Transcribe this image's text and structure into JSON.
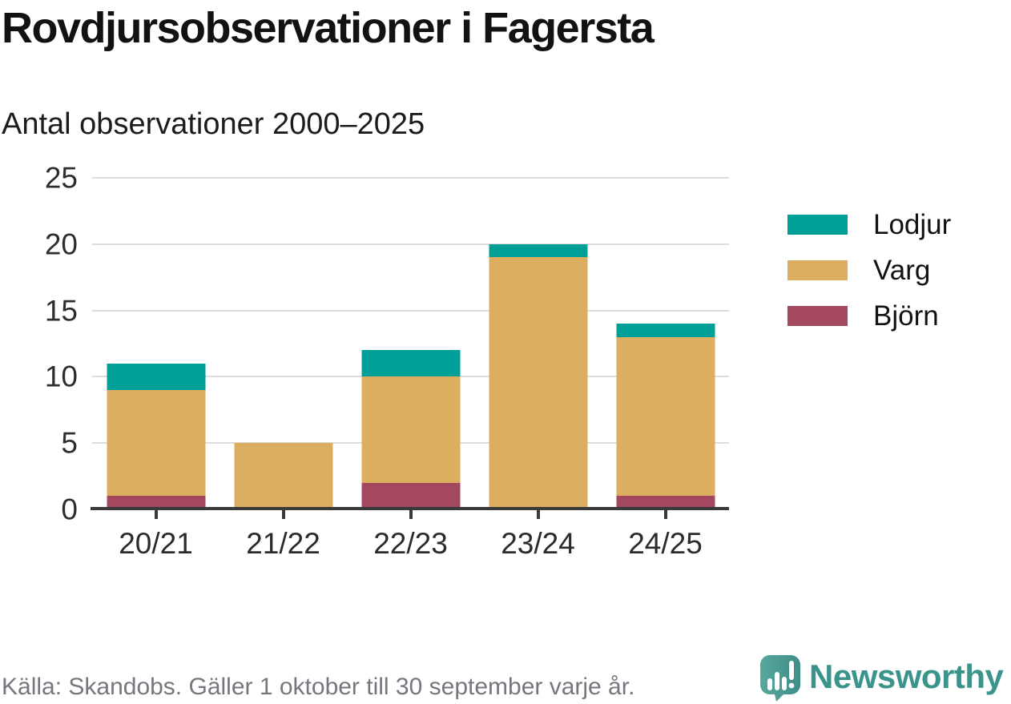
{
  "header": {
    "title": "Rovdjursobservationer i Fagersta",
    "subtitle": "Antal observationer 2000–2025"
  },
  "chart_data": {
    "type": "bar",
    "stacked": true,
    "title": "Rovdjursobservationer i Fagersta",
    "subtitle": "Antal observationer 2000–2025",
    "categories": [
      "20/21",
      "21/22",
      "22/23",
      "23/24",
      "24/25"
    ],
    "series": [
      {
        "name": "Björn",
        "color": "#a4485f",
        "values": [
          1,
          0,
          2,
          0,
          1
        ]
      },
      {
        "name": "Varg",
        "color": "#dcae60",
        "values": [
          8,
          5,
          8,
          19,
          12
        ]
      },
      {
        "name": "Lodjur",
        "color": "#00a099",
        "values": [
          2,
          0,
          2,
          1,
          1
        ]
      }
    ],
    "stack_totals": [
      11,
      5,
      12,
      20,
      14
    ],
    "xlabel": "",
    "ylabel": "",
    "ylim": [
      0,
      25
    ],
    "yticks": [
      0,
      5,
      10,
      15,
      20,
      25
    ],
    "grid": true,
    "legend_position": "right"
  },
  "legend": {
    "items": [
      {
        "label": "Lodjur",
        "color": "#00a099"
      },
      {
        "label": "Varg",
        "color": "#dcae60"
      },
      {
        "label": "Björn",
        "color": "#a4485f"
      }
    ]
  },
  "footer": {
    "source": "Källa: Skandobs. Gäller 1 oktober till 30 september varje år.",
    "brand_name": "Newsworthy",
    "brand_color": "#3b948b"
  },
  "colors": {
    "gridline": "#dcdcdc",
    "axis": "#3a3a3a",
    "title_text": "#121212",
    "muted_text": "#76767e"
  }
}
